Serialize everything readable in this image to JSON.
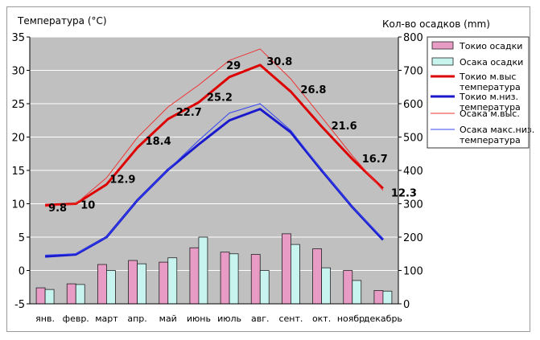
{
  "chart_data": {
    "type": "bar+line",
    "left_axis_title": "Температура (°C)",
    "right_axis_title": "Кол-во осадков (mm)",
    "left_ylim": [
      -5,
      35
    ],
    "left_ticks": [
      "-5",
      "0",
      "5",
      "10",
      "15",
      "20",
      "25",
      "30",
      "35"
    ],
    "left_tick_values": [
      -5,
      0,
      5,
      10,
      15,
      20,
      25,
      30,
      35
    ],
    "right_ylim": [
      0,
      800
    ],
    "right_ticks": [
      "0",
      "100",
      "200",
      "300",
      "400",
      "500",
      "600",
      "700",
      "800"
    ],
    "right_tick_values": [
      0,
      100,
      200,
      300,
      400,
      500,
      600,
      700,
      800
    ],
    "categories": [
      "янв.",
      "февр.",
      "март",
      "апр.",
      "май",
      "июнь",
      "июль",
      "авг.",
      "сент.",
      "окт.",
      "ноябр.",
      "декабрь"
    ],
    "bars": [
      {
        "name": "Токио осадки",
        "color": "#e89bc4",
        "values": [
          48,
          60,
          118,
          130,
          125,
          168,
          155,
          148,
          210,
          165,
          100,
          40
        ]
      },
      {
        "name": "Осака осадки",
        "color": "#c8f4f0",
        "values": [
          43,
          58,
          100,
          120,
          138,
          200,
          150,
          100,
          178,
          108,
          70,
          38
        ]
      }
    ],
    "lines": [
      {
        "name": "Токио м.выс температура",
        "color": "#dd0000",
        "width": 3,
        "values": [
          9.8,
          10,
          12.9,
          18.4,
          22.7,
          25.2,
          29,
          30.8,
          26.8,
          21.6,
          16.7,
          12.3
        ],
        "labels": [
          "9.8",
          "10",
          "12.9",
          "18.4",
          "22.7",
          "25.2",
          "29",
          "30.8",
          "26.8",
          "21.6",
          "16.7",
          "12.3"
        ]
      },
      {
        "name": "Токио м.низ. температура",
        "color": "#1a1acc",
        "width": 3,
        "values": [
          2.1,
          2.4,
          5.0,
          10.5,
          15.1,
          18.9,
          22.5,
          24.2,
          20.7,
          15.0,
          9.5,
          4.6
        ]
      },
      {
        "name": "Осака м.выс.",
        "color": "#ee3333",
        "width": 1,
        "values": [
          9.6,
          10.0,
          13.9,
          19.9,
          24.5,
          27.8,
          31.5,
          33.2,
          28.7,
          23.0,
          17.2,
          12.0
        ]
      },
      {
        "name": "Осака макс.низ. температура",
        "color": "#3344ee",
        "width": 1,
        "values": [
          2.3,
          2.5,
          5.0,
          10.5,
          15.1,
          19.5,
          23.6,
          25.0,
          21.0,
          15.1,
          9.5,
          4.8
        ]
      }
    ],
    "legend": {
      "position": "right",
      "items": [
        {
          "label": "Токио осадки",
          "kind": "bar",
          "color": "#e89bc4"
        },
        {
          "label": "Осака осадки",
          "kind": "bar",
          "color": "#c8f4f0"
        },
        {
          "label": "Токио м.выс\nтемпература",
          "kind": "line",
          "color": "#dd0000",
          "width": 3
        },
        {
          "label": "Токио м.низ.\nтемпература",
          "kind": "line",
          "color": "#1a1acc",
          "width": 3
        },
        {
          "label": "Осака м.выс.",
          "kind": "line",
          "color": "#ee3333",
          "width": 1
        },
        {
          "label": "Осака макс.низ.\nтемпература",
          "kind": "line",
          "color": "#3344ee",
          "width": 1
        }
      ]
    },
    "grid": true,
    "plot_background": "#c0c0c0"
  }
}
